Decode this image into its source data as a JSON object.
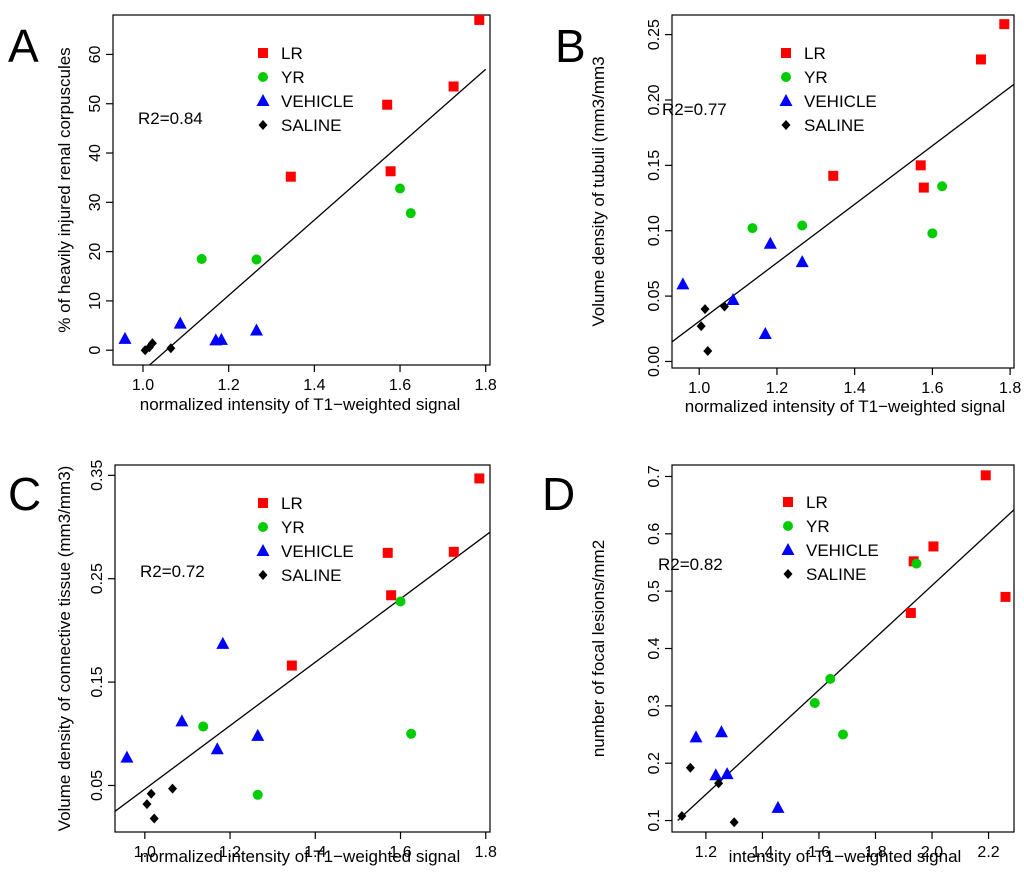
{
  "figure": {
    "title": ""
  },
  "series_styles": {
    "LR": {
      "shape": "square",
      "color": "#ff0000"
    },
    "YR": {
      "shape": "circle",
      "color": "#00cc00"
    },
    "VEHICLE": {
      "shape": "triangle",
      "color": "#0000ff"
    },
    "SALINE": {
      "shape": "diamond",
      "color": "#000000"
    }
  },
  "chart_data": [
    {
      "panel": "A",
      "type": "scatter",
      "xlabel": "normalized intensity of T1−weighted signal",
      "ylabel": "% of heavily injured renal corpuscules",
      "xlim": [
        0.93,
        1.81
      ],
      "ylim": [
        -3,
        68
      ],
      "xticks": [
        1.0,
        1.2,
        1.4,
        1.6,
        1.8
      ],
      "xtick_labels": [
        "1.0",
        "1.2",
        "1.4",
        "1.6",
        "1.8"
      ],
      "yticks": [
        0,
        10,
        20,
        30,
        40,
        50,
        60
      ],
      "ytick_labels": [
        "0",
        "10",
        "20",
        "30",
        "40",
        "50",
        "60"
      ],
      "r2_label": "R2=0.84",
      "legend": [
        "LR",
        "YR",
        "VEHICLE",
        "SALINE"
      ],
      "fit_line": {
        "x": [
          0.95,
          1.8
        ],
        "y": [
          -8,
          57
        ]
      },
      "series": [
        {
          "name": "LR",
          "x": [
            1.345,
            1.57,
            1.578,
            1.725,
            1.785
          ],
          "y": [
            35.2,
            49.8,
            36.3,
            53.5,
            67.0
          ]
        },
        {
          "name": "YR",
          "x": [
            1.137,
            1.265,
            1.6,
            1.625
          ],
          "y": [
            18.5,
            18.4,
            32.8,
            27.8
          ]
        },
        {
          "name": "VEHICLE",
          "x": [
            0.958,
            1.087,
            1.17,
            1.183,
            1.265
          ],
          "y": [
            2.3,
            5.4,
            2.0,
            2.1,
            4.0
          ]
        },
        {
          "name": "SALINE",
          "x": [
            1.005,
            1.015,
            1.022,
            1.065
          ],
          "y": [
            0.0,
            0.6,
            1.4,
            0.4
          ]
        }
      ]
    },
    {
      "panel": "B",
      "type": "scatter",
      "xlabel": "normalized intensity of T1−weighted signal",
      "ylabel": "Volume density of tubuli (mm3/mm3",
      "xlim": [
        0.93,
        1.81
      ],
      "ylim": [
        -0.005,
        0.265
      ],
      "xticks": [
        1.0,
        1.2,
        1.4,
        1.6,
        1.8
      ],
      "xtick_labels": [
        "1.0",
        "1.2",
        "1.4",
        "1.6",
        "1.8"
      ],
      "yticks": [
        0.0,
        0.05,
        0.1,
        0.15,
        0.2,
        0.25
      ],
      "ytick_labels": [
        "0.00",
        "0.05",
        "0.10",
        "0.15",
        "0.20",
        "0.25"
      ],
      "r2_label": "R2=0.77",
      "legend": [
        "LR",
        "YR",
        "VEHICLE",
        "SALINE"
      ],
      "fit_line": {
        "x": [
          0.93,
          1.81
        ],
        "y": [
          0.015,
          0.212
        ]
      },
      "series": [
        {
          "name": "LR",
          "x": [
            1.345,
            1.57,
            1.578,
            1.725,
            1.785
          ],
          "y": [
            0.142,
            0.15,
            0.133,
            0.231,
            0.258
          ]
        },
        {
          "name": "YR",
          "x": [
            1.137,
            1.265,
            1.6,
            1.625
          ],
          "y": [
            0.102,
            0.104,
            0.098,
            0.134
          ]
        },
        {
          "name": "VEHICLE",
          "x": [
            0.958,
            1.087,
            1.17,
            1.183,
            1.265
          ],
          "y": [
            0.059,
            0.047,
            0.021,
            0.09,
            0.076
          ]
        },
        {
          "name": "SALINE",
          "x": [
            1.005,
            1.015,
            1.022,
            1.065
          ],
          "y": [
            0.027,
            0.04,
            0.008,
            0.042
          ]
        }
      ]
    },
    {
      "panel": "C",
      "type": "scatter",
      "xlabel": "normalized intensity of T1−weighted signal",
      "ylabel": "Volume density of connective tissue (mm3/mm3)",
      "xlim": [
        0.93,
        1.81
      ],
      "ylim": [
        0.005,
        0.36
      ],
      "xticks": [
        1.0,
        1.2,
        1.4,
        1.6,
        1.8
      ],
      "xtick_labels": [
        "1.0",
        "1.2",
        "1.4",
        "1.6",
        "1.8"
      ],
      "yticks": [
        0.05,
        0.15,
        0.25,
        0.35
      ],
      "ytick_labels": [
        "0.05",
        "0.15",
        "0.25",
        "0.35"
      ],
      "r2_label": "R2=0.72",
      "legend": [
        "LR",
        "YR",
        "VEHICLE",
        "SALINE"
      ],
      "fit_line": {
        "x": [
          0.93,
          1.81
        ],
        "y": [
          0.025,
          0.295
        ]
      },
      "series": [
        {
          "name": "LR",
          "x": [
            1.345,
            1.57,
            1.578,
            1.725,
            1.785
          ],
          "y": [
            0.166,
            0.275,
            0.234,
            0.276,
            0.347
          ]
        },
        {
          "name": "YR",
          "x": [
            1.137,
            1.265,
            1.6,
            1.625
          ],
          "y": [
            0.107,
            0.041,
            0.228,
            0.1
          ]
        },
        {
          "name": "VEHICLE",
          "x": [
            0.958,
            1.087,
            1.17,
            1.183,
            1.265
          ],
          "y": [
            0.077,
            0.112,
            0.085,
            0.187,
            0.098
          ]
        },
        {
          "name": "SALINE",
          "x": [
            1.005,
            1.015,
            1.022,
            1.065
          ],
          "y": [
            0.032,
            0.042,
            0.018,
            0.047
          ]
        }
      ]
    },
    {
      "panel": "D",
      "type": "scatter",
      "xlabel": "intensity of T1−weighted signal",
      "ylabel": "number of focal lesions/mm2",
      "xlim": [
        1.08,
        2.29
      ],
      "ylim": [
        0.08,
        0.72
      ],
      "xticks": [
        1.2,
        1.4,
        1.6,
        1.8,
        2.0,
        2.2
      ],
      "xtick_labels": [
        "1.2",
        "1.4",
        "1.6",
        "1.8",
        "2.0",
        "2.2"
      ],
      "yticks": [
        0.1,
        0.2,
        0.3,
        0.4,
        0.5,
        0.6,
        0.7
      ],
      "ytick_labels": [
        "0.1",
        "0.2",
        "0.3",
        "0.4",
        "0.5",
        "0.6",
        "0.7"
      ],
      "r2_label": "R2=0.82",
      "legend": [
        "LR",
        "YR",
        "VEHICLE",
        "SALINE"
      ],
      "fit_line": {
        "x": [
          1.1,
          2.29
        ],
        "y": [
          0.1,
          0.642
        ]
      },
      "series": [
        {
          "name": "LR",
          "x": [
            1.925,
            1.935,
            2.005,
            2.19,
            2.26
          ],
          "y": [
            0.462,
            0.552,
            0.578,
            0.702,
            0.49
          ]
        },
        {
          "name": "YR",
          "x": [
            1.585,
            1.64,
            1.685,
            1.945
          ],
          "y": [
            0.305,
            0.347,
            0.25,
            0.548
          ]
        },
        {
          "name": "VEHICLE",
          "x": [
            1.165,
            1.235,
            1.255,
            1.275,
            1.455
          ],
          "y": [
            0.245,
            0.179,
            0.254,
            0.181,
            0.122
          ]
        },
        {
          "name": "SALINE",
          "x": [
            1.115,
            1.145,
            1.245,
            1.3
          ],
          "y": [
            0.108,
            0.192,
            0.165,
            0.097
          ]
        }
      ]
    }
  ]
}
